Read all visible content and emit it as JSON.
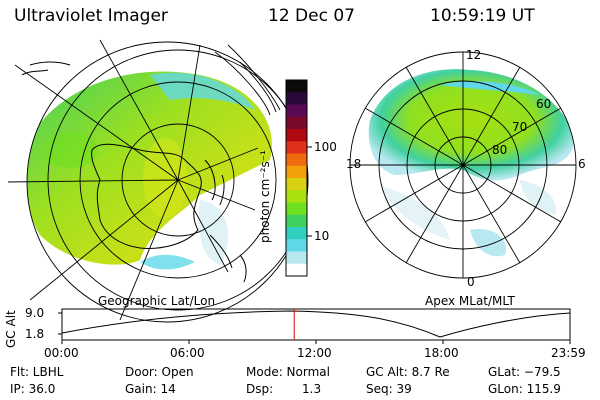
{
  "header": {
    "instrument": "Ultraviolet Imager",
    "date": "12 Dec 07",
    "time": "10:59:19 UT"
  },
  "left_panel": {
    "caption": "Geographic Lat/Lon"
  },
  "right_panel": {
    "caption": "Apex MLat/MLT",
    "mlt_labels": [
      "12",
      "18",
      "6",
      "0"
    ],
    "lat_labels": [
      "60",
      "70",
      "80"
    ]
  },
  "colorbar": {
    "unit": "photon cm⁻²s⁻¹",
    "ticks": [
      "100",
      "10"
    ],
    "colors": [
      "#0a0a0a",
      "#2a0a3a",
      "#5a0a55",
      "#7a0a2a",
      "#b00a10",
      "#e0301a",
      "#f06a10",
      "#f4a00a",
      "#d8d010",
      "#a8e010",
      "#70e020",
      "#40d060",
      "#30d0c0",
      "#60d8e8",
      "#b8e8f0",
      "#ffffff"
    ]
  },
  "orbit_plot": {
    "ylabel": "GC Alt",
    "yticks": [
      "9.0",
      "1.8"
    ],
    "xticks": [
      "00:00",
      "06:00",
      "12:00",
      "18:00",
      "23:59"
    ],
    "current_time_fraction": 0.457
  },
  "status": {
    "flt": "Flt: LBHL",
    "ip": "IP: 36.0",
    "door": "Door: Open",
    "gain": "Gain: 14",
    "mode": "Mode: Normal",
    "dsp": "Dsp:",
    "dsp_value": "1.3",
    "gc_alt": "GC Alt: 8.7 Re",
    "seq": "Seq: 39",
    "glat": "GLat: −79.5",
    "glon": "GLon: 115.9"
  }
}
